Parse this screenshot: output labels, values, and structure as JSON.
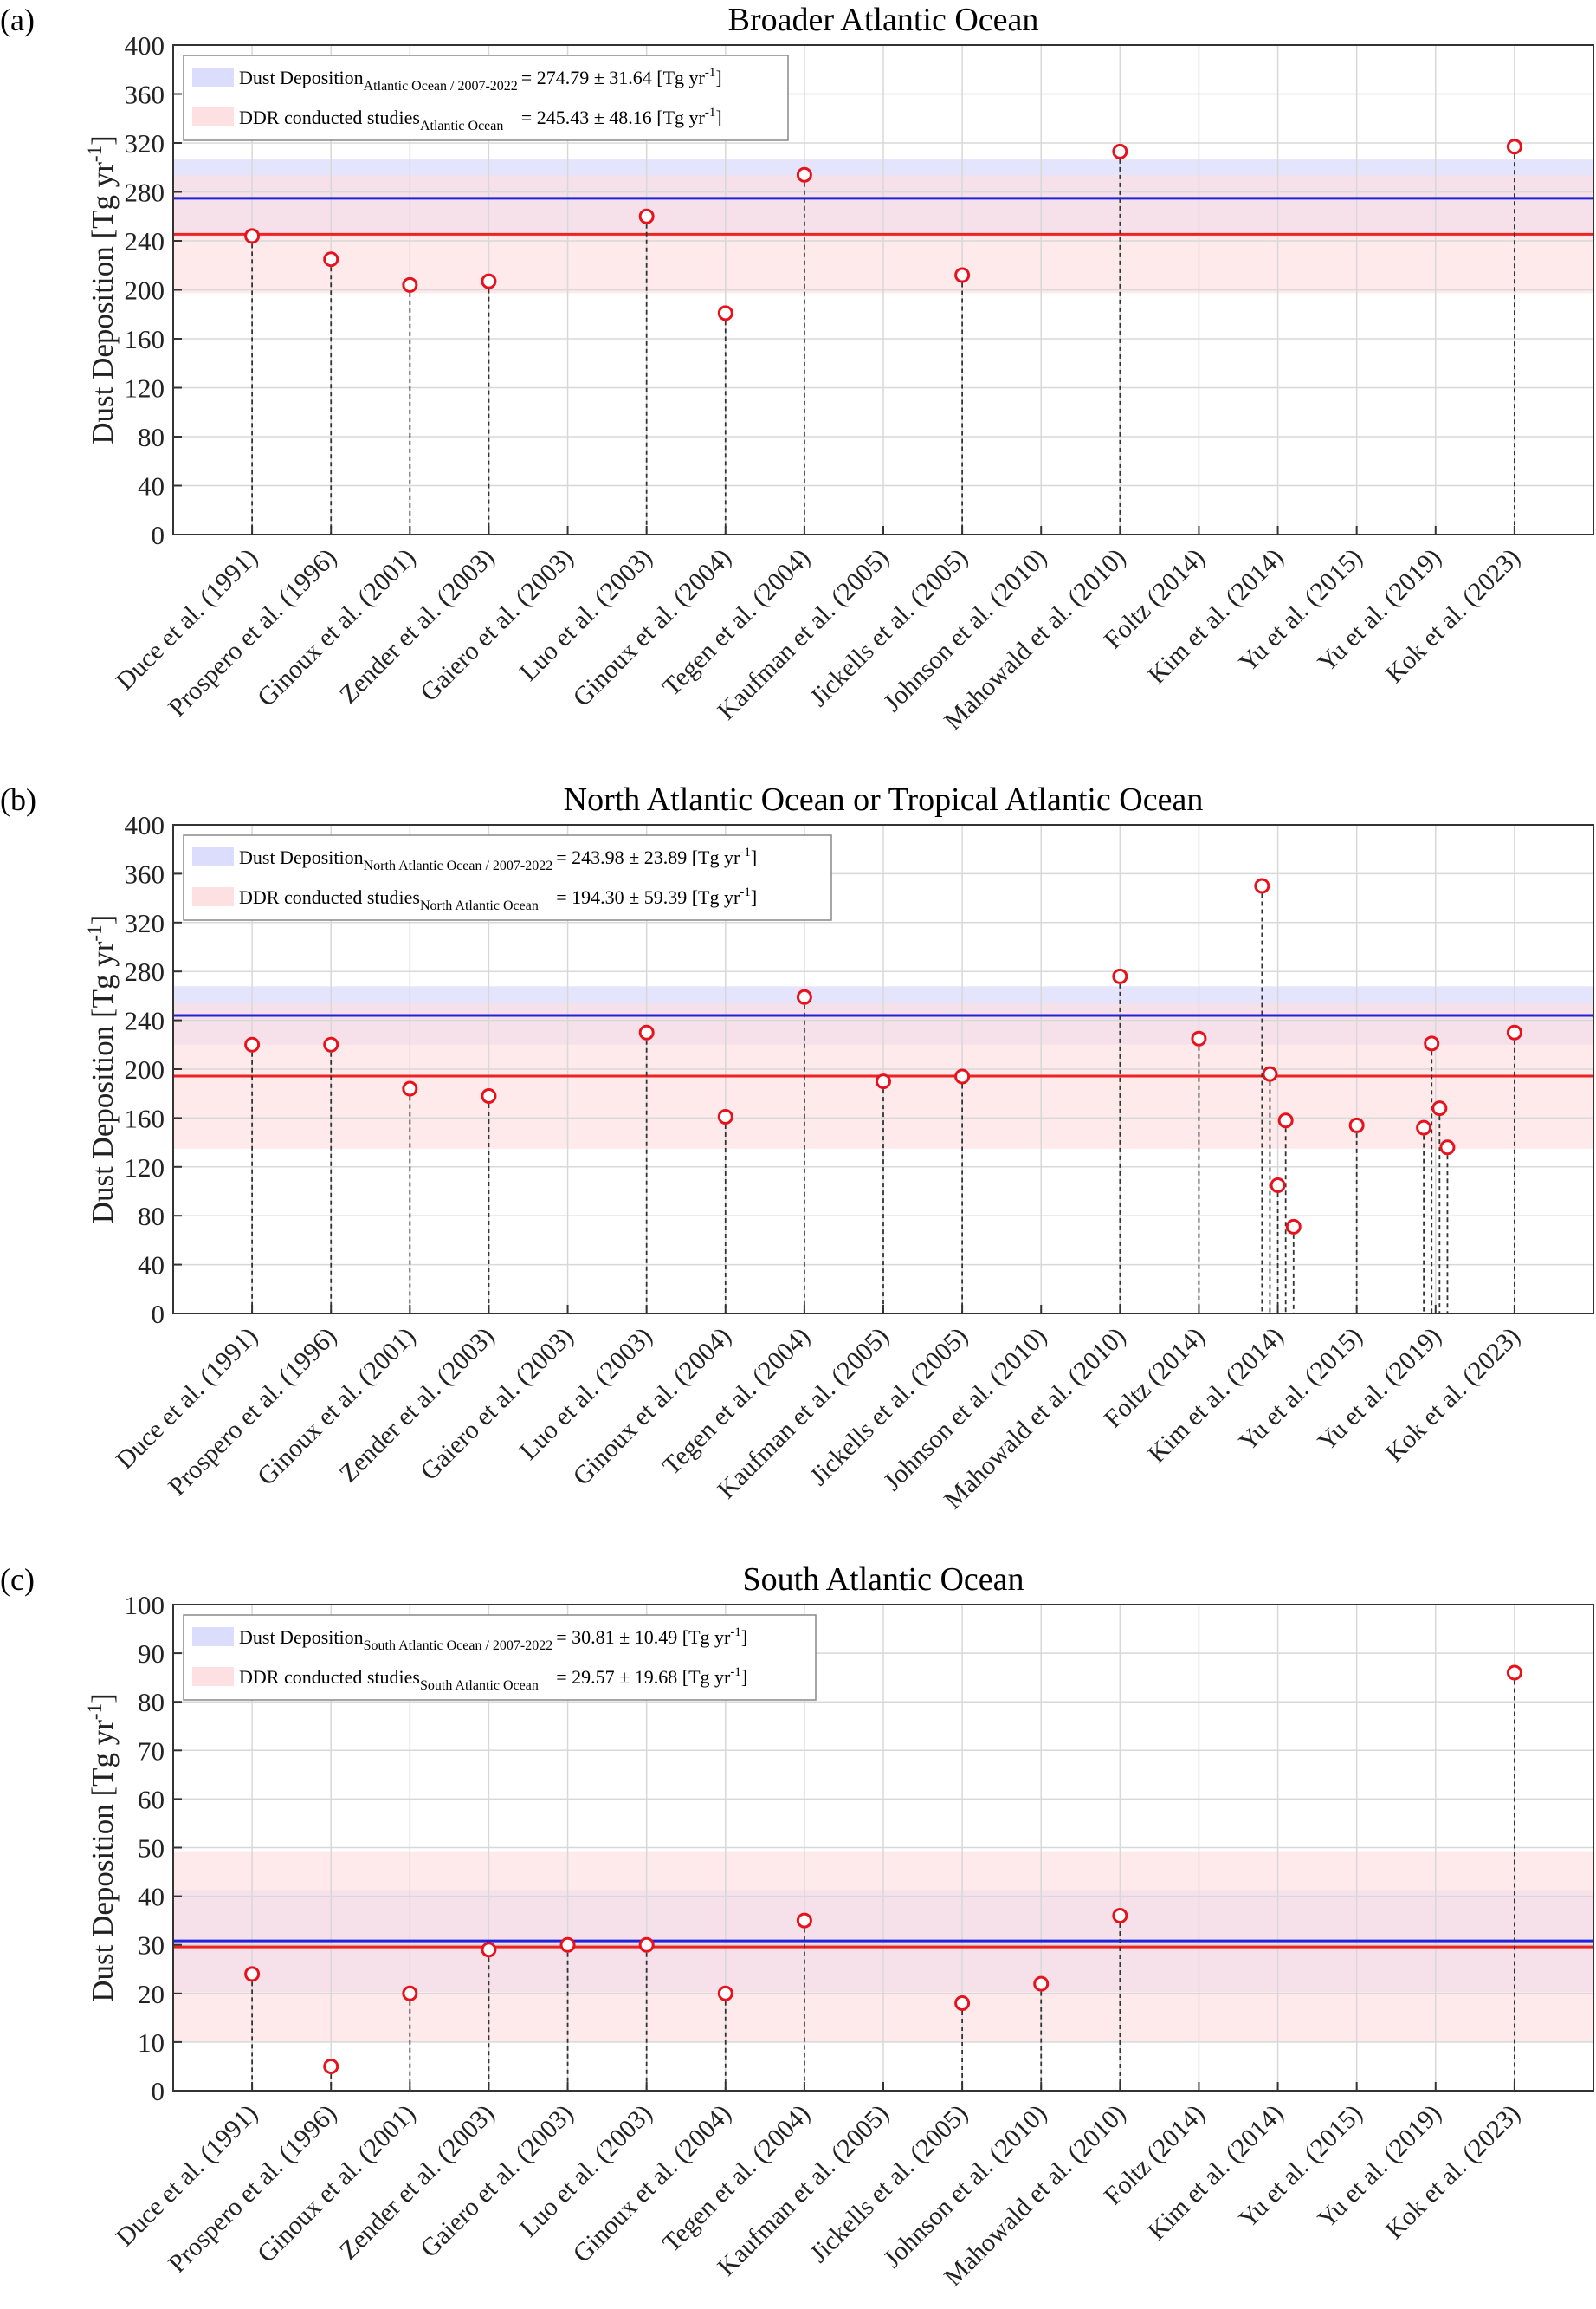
{
  "chart_data": [
    {
      "panel_label": "(a)",
      "type": "scatter",
      "title": "Broader Atlantic Ocean",
      "ylabel_main": "Dust Deposition [Tg yr",
      "ylabel_sup": "-1",
      "ylabel_end": "]",
      "ylim": [
        0,
        400
      ],
      "yticks": [
        0,
        40,
        80,
        120,
        160,
        200,
        240,
        280,
        320,
        360,
        400
      ],
      "grid": true,
      "legend_placement": "top-left",
      "categories": [
        "Duce et al. (1991)",
        "Prospero et al. (1996)",
        "Ginoux et al. (2001)",
        "Zender et al. (2003)",
        "Gaiero et al. (2003)",
        "Luo et al. (2003)",
        "Ginoux et al. (2004)",
        "Tegen et al. (2004)",
        "Kaufman et al. (2005)",
        "Jickells et al. (2005)",
        "Johnson et al. (2010)",
        "Mahowald et al. (2010)",
        "Foltz (2014)",
        "Kim et al. (2014)",
        "Yu et al. (2015)",
        "Yu et al. (2019)",
        "Kok et al. (2023)"
      ],
      "points": [
        {
          "x": 1,
          "y": 244
        },
        {
          "x": 2,
          "y": 225
        },
        {
          "x": 3,
          "y": 204
        },
        {
          "x": 4,
          "y": 207
        },
        {
          "x": 6,
          "y": 260
        },
        {
          "x": 7,
          "y": 181
        },
        {
          "x": 8,
          "y": 294
        },
        {
          "x": 10,
          "y": 212
        },
        {
          "x": 12,
          "y": 313
        },
        {
          "x": 17,
          "y": 317
        }
      ],
      "bands": [
        {
          "name": "satellite",
          "mean": 274.79,
          "std": 31.64,
          "line_color": "#2222dd",
          "fill_color": "#d8d8fb"
        },
        {
          "name": "studies",
          "mean": 245.43,
          "std": 48.16,
          "line_color": "#ee2222",
          "fill_color": "#fde0e2"
        }
      ],
      "legend": [
        {
          "label": "Dust Deposition",
          "sub": "Atlantic Ocean / 2007-2022",
          "value": "= 274.79 ± 31.64 [Tg yr",
          "sup": "-1",
          "end": "]",
          "color": "#dcdcfc"
        },
        {
          "label": "DDR conducted studies",
          "sub": "Atlantic Ocean",
          "value": "= 245.43 ± 48.16 [Tg yr",
          "sup": "-1",
          "end": "]",
          "color": "#fde0e2"
        }
      ]
    },
    {
      "panel_label": "(b)",
      "type": "scatter",
      "title": "North Atlantic Ocean or Tropical Atlantic Ocean",
      "ylabel_main": "Dust Deposition [Tg yr",
      "ylabel_sup": "-1",
      "ylabel_end": "]",
      "ylim": [
        0,
        400
      ],
      "yticks": [
        0,
        40,
        80,
        120,
        160,
        200,
        240,
        280,
        320,
        360,
        400
      ],
      "grid": true,
      "legend_placement": "top-left",
      "categories": [
        "Duce et al. (1991)",
        "Prospero et al. (1996)",
        "Ginoux et al. (2001)",
        "Zender et al. (2003)",
        "Gaiero et al. (2003)",
        "Luo et al. (2003)",
        "Ginoux et al. (2004)",
        "Tegen et al. (2004)",
        "Kaufman et al. (2005)",
        "Jickells et al. (2005)",
        "Johnson et al. (2010)",
        "Mahowald et al. (2010)",
        "Foltz (2014)",
        "Kim et al. (2014)",
        "Yu et al. (2015)",
        "Yu et al. (2019)",
        "Kok et al. (2023)"
      ],
      "points": [
        {
          "x": 1,
          "y": 220
        },
        {
          "x": 2,
          "y": 220
        },
        {
          "x": 3,
          "y": 184
        },
        {
          "x": 4,
          "y": 178
        },
        {
          "x": 6,
          "y": 230
        },
        {
          "x": 7,
          "y": 161
        },
        {
          "x": 8,
          "y": 259
        },
        {
          "x": 9,
          "y": 190
        },
        {
          "x": 10,
          "y": 194
        },
        {
          "x": 12,
          "y": 276
        },
        {
          "x": 13,
          "y": 225
        },
        {
          "x": 13.8,
          "y": 350
        },
        {
          "x": 13.9,
          "y": 196
        },
        {
          "x": 14.0,
          "y": 105
        },
        {
          "x": 14.1,
          "y": 158
        },
        {
          "x": 14.2,
          "y": 71
        },
        {
          "x": 15,
          "y": 154
        },
        {
          "x": 15.85,
          "y": 152
        },
        {
          "x": 15.95,
          "y": 221
        },
        {
          "x": 16.05,
          "y": 168
        },
        {
          "x": 16.15,
          "y": 136
        },
        {
          "x": 17,
          "y": 230
        }
      ],
      "bands": [
        {
          "name": "satellite",
          "mean": 243.98,
          "std": 23.89,
          "line_color": "#2222dd",
          "fill_color": "#d8d8fb"
        },
        {
          "name": "studies",
          "mean": 194.3,
          "std": 59.39,
          "line_color": "#ee2222",
          "fill_color": "#fde0e2"
        }
      ],
      "legend": [
        {
          "label": "Dust Deposition",
          "sub": "North Atlantic Ocean / 2007-2022",
          "value": "= 243.98 ± 23.89 [Tg yr",
          "sup": "-1",
          "end": "]",
          "color": "#dcdcfc"
        },
        {
          "label": "DDR conducted studies",
          "sub": "North Atlantic Ocean",
          "value": "= 194.30 ± 59.39 [Tg yr",
          "sup": "-1",
          "end": "]",
          "color": "#fde0e2"
        }
      ]
    },
    {
      "panel_label": "(c)",
      "type": "scatter",
      "title": "South Atlantic Ocean",
      "ylabel_main": "Dust Deposition [Tg yr",
      "ylabel_sup": "-1",
      "ylabel_end": "]",
      "ylim": [
        0,
        100
      ],
      "yticks": [
        0,
        10,
        20,
        30,
        40,
        50,
        60,
        70,
        80,
        90,
        100
      ],
      "grid": true,
      "legend_placement": "top-left",
      "categories": [
        "Duce et al. (1991)",
        "Prospero et al. (1996)",
        "Ginoux et al. (2001)",
        "Zender et al. (2003)",
        "Gaiero et al. (2003)",
        "Luo et al. (2003)",
        "Ginoux et al. (2004)",
        "Tegen et al. (2004)",
        "Kaufman et al. (2005)",
        "Jickells et al. (2005)",
        "Johnson et al. (2010)",
        "Mahowald et al. (2010)",
        "Foltz (2014)",
        "Kim et al. (2014)",
        "Yu et al. (2015)",
        "Yu et al. (2019)",
        "Kok et al. (2023)"
      ],
      "points": [
        {
          "x": 1,
          "y": 24
        },
        {
          "x": 2,
          "y": 5
        },
        {
          "x": 3,
          "y": 20
        },
        {
          "x": 4,
          "y": 29
        },
        {
          "x": 5,
          "y": 30
        },
        {
          "x": 6,
          "y": 30
        },
        {
          "x": 7,
          "y": 20
        },
        {
          "x": 8,
          "y": 35
        },
        {
          "x": 10,
          "y": 18
        },
        {
          "x": 11,
          "y": 22
        },
        {
          "x": 12,
          "y": 36
        },
        {
          "x": 17,
          "y": 86
        }
      ],
      "bands": [
        {
          "name": "satellite",
          "mean": 30.81,
          "std": 10.49,
          "line_color": "#2222dd",
          "fill_color": "#d8d8fb"
        },
        {
          "name": "studies",
          "mean": 29.57,
          "std": 19.68,
          "line_color": "#ee2222",
          "fill_color": "#fde0e2"
        }
      ],
      "legend": [
        {
          "label": "Dust Deposition",
          "sub": "South Atlantic Ocean / 2007-2022",
          "value": "= 30.81 ± 10.49 [Tg yr",
          "sup": "-1",
          "end": "]",
          "color": "#dcdcfc"
        },
        {
          "label": "DDR conducted studies",
          "sub": "South Atlantic Ocean",
          "value": "= 29.57 ± 19.68 [Tg yr",
          "sup": "-1",
          "end": "]",
          "color": "#fde0e2"
        }
      ]
    }
  ]
}
